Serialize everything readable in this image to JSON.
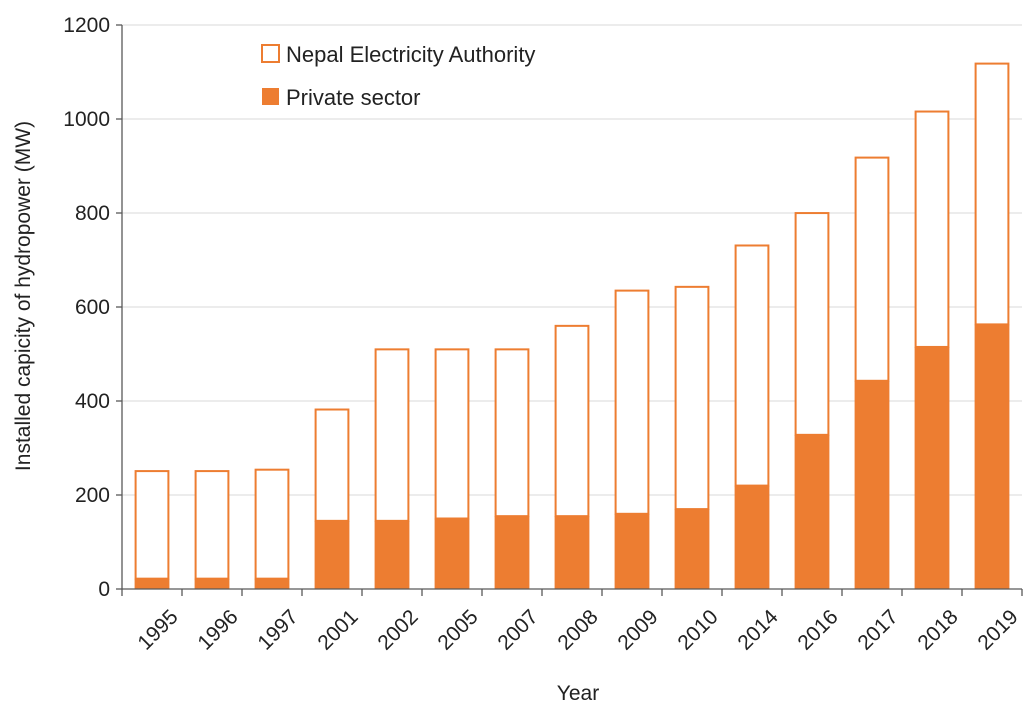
{
  "chart_data": {
    "type": "bar",
    "stacked": true,
    "xlabel": "Year",
    "ylabel": "Installed capicity of hydropower (MW)",
    "ylim": [
      0,
      1200
    ],
    "yticks": [
      0,
      200,
      400,
      600,
      800,
      1000,
      1200
    ],
    "grid": true,
    "legend_position": "top-left",
    "categories": [
      "1995",
      "1996",
      "1997",
      "2001",
      "2002",
      "2005",
      "2007",
      "2008",
      "2009",
      "2010",
      "2014",
      "2016",
      "2017",
      "2018",
      "2019"
    ],
    "series": [
      {
        "name": "Private sector",
        "style": "filled",
        "values": [
          22,
          22,
          22,
          145,
          145,
          150,
          155,
          155,
          160,
          170,
          220,
          328,
          443,
          515,
          563
        ]
      },
      {
        "name": "Nepal Electricity Authority",
        "style": "outline",
        "values": [
          231,
          231,
          234,
          239,
          367,
          362,
          357,
          407,
          477,
          475,
          513,
          474,
          477,
          503,
          557
        ]
      }
    ],
    "colors": {
      "bar": "#ED7D31",
      "grid": "#D9D9D9",
      "axis": "#595959"
    }
  }
}
